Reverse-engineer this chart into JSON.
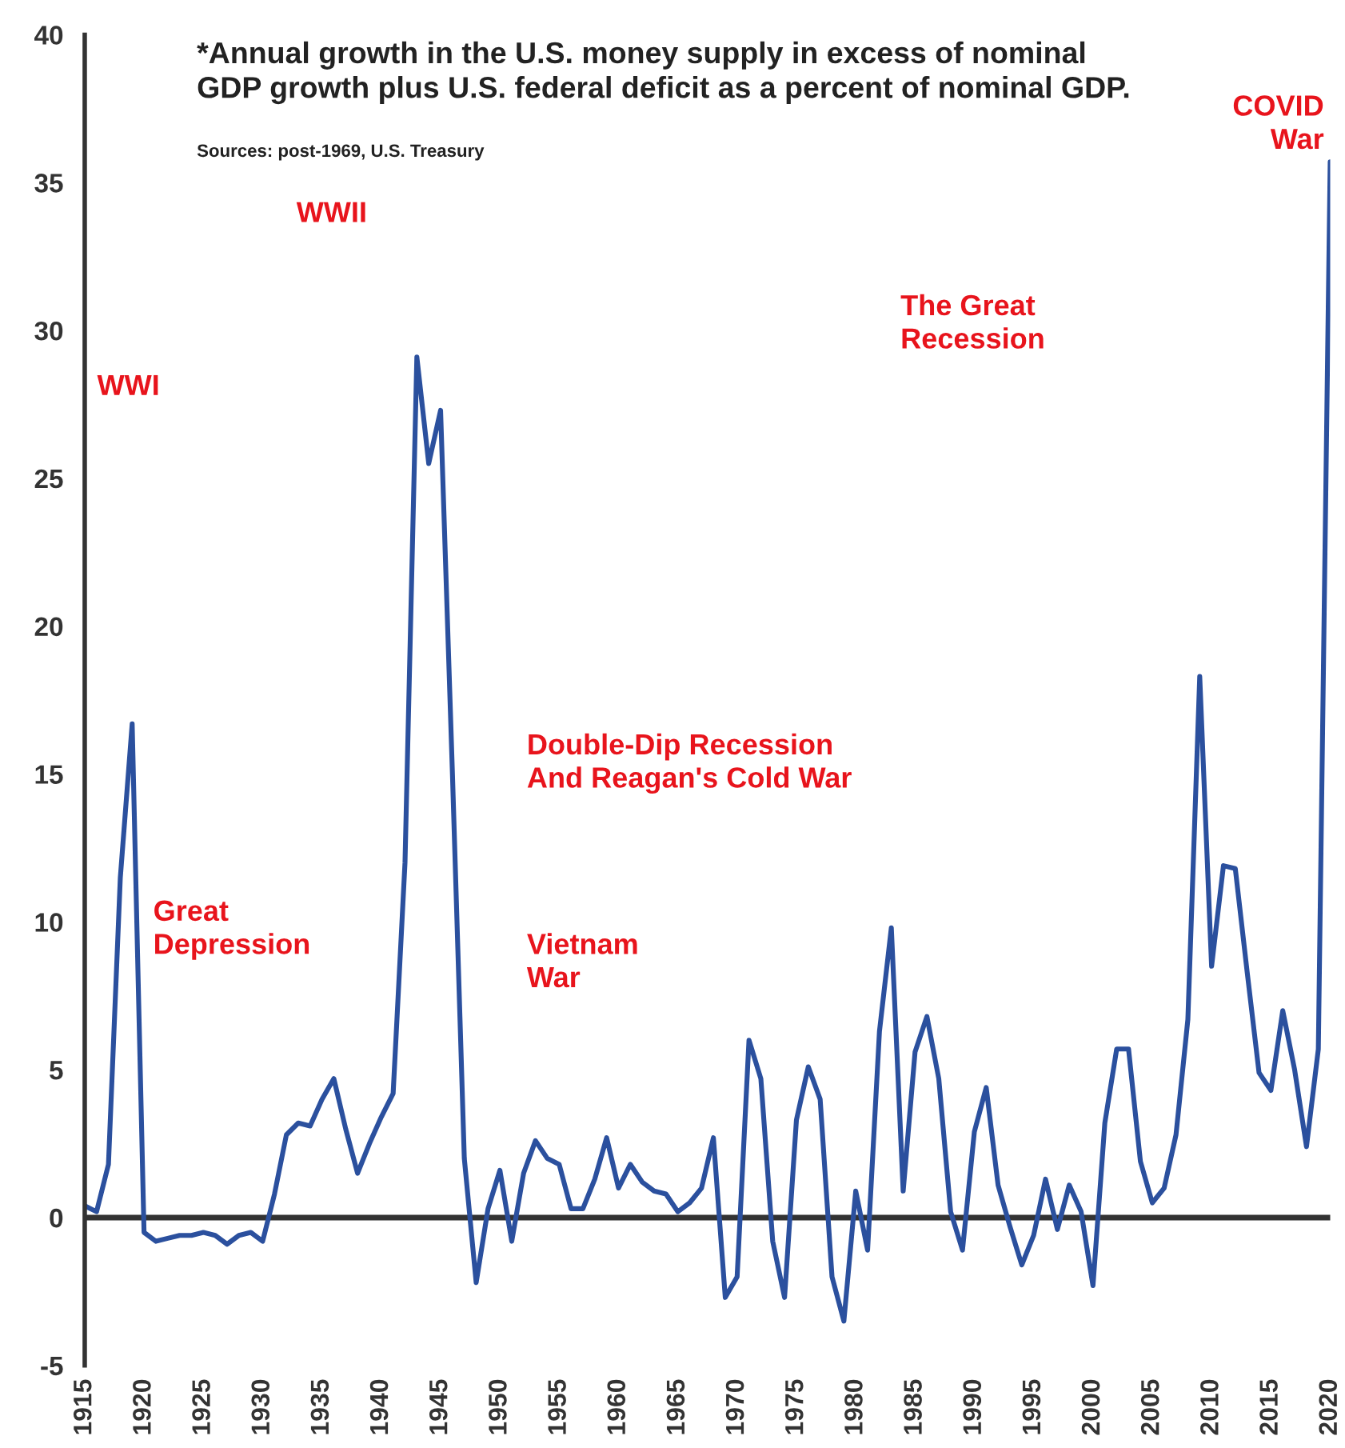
{
  "chart_data": {
    "type": "line",
    "title": "*Annual growth in the U.S. money supply in excess of nominal\nGDP growth plus U.S. federal deficit as a percent of nominal GDP.",
    "annotations": [
      "Sources: post-1969, U.S. Treasury",
      "WWI",
      "Great\nDepression",
      "WWII",
      "Vietnam\nWar",
      "Double-Dip Recession\nAnd Reagan's Cold War",
      "The Great\nRecession",
      "COVID\nWar"
    ],
    "x": [
      1915,
      1916,
      1917,
      1918,
      1919,
      1920,
      1921,
      1922,
      1923,
      1924,
      1925,
      1926,
      1927,
      1928,
      1929,
      1930,
      1931,
      1932,
      1933,
      1934,
      1935,
      1936,
      1937,
      1938,
      1939,
      1940,
      1941,
      1942,
      1943,
      1944,
      1945,
      1946,
      1947,
      1948,
      1949,
      1950,
      1951,
      1952,
      1953,
      1954,
      1955,
      1956,
      1957,
      1958,
      1959,
      1960,
      1961,
      1962,
      1963,
      1964,
      1965,
      1966,
      1967,
      1968,
      1969,
      1970,
      1971,
      1972,
      1973,
      1974,
      1975,
      1976,
      1977,
      1978,
      1979,
      1980,
      1981,
      1982,
      1983,
      1984,
      1985,
      1986,
      1987,
      1988,
      1989,
      1990,
      1991,
      1992,
      1993,
      1994,
      1995,
      1996,
      1997,
      1998,
      1999,
      2000,
      2001,
      2002,
      2003,
      2004,
      2005,
      2006,
      2007,
      2008,
      2009,
      2010,
      2011,
      2012,
      2013,
      2014,
      2015,
      2016,
      2017,
      2018,
      2019,
      2020
    ],
    "series": [
      {
        "color": "#2b509e",
        "values": [
          0.4,
          0.2,
          1.8,
          11.5,
          16.7,
          -0.5,
          -0.8,
          -0.7,
          -0.6,
          -0.6,
          -0.5,
          -0.6,
          -0.9,
          -0.6,
          -0.5,
          -0.8,
          0.8,
          2.8,
          3.2,
          3.1,
          4.0,
          4.7,
          3.0,
          1.5,
          2.5,
          3.4,
          4.2,
          12.0,
          29.1,
          25.5,
          27.3,
          15.0,
          2.0,
          -2.2,
          0.3,
          1.6,
          -0.8,
          1.5,
          2.6,
          2.0,
          1.8,
          0.3,
          0.3,
          1.3,
          2.7,
          1.0,
          1.8,
          1.2,
          0.9,
          0.8,
          0.2,
          0.5,
          1.0,
          2.7,
          -2.7,
          -2.0,
          6.0,
          4.7,
          -0.8,
          -2.7,
          3.3,
          5.1,
          4.0,
          -2.0,
          -3.5,
          0.9,
          -1.1,
          6.3,
          9.8,
          0.9,
          5.6,
          6.8,
          4.7,
          0.2,
          -1.1,
          2.9,
          4.4,
          1.1,
          -0.3,
          -1.6,
          -0.6,
          1.3,
          -0.4,
          1.1,
          0.2,
          -2.3,
          3.2,
          5.7,
          5.7,
          1.9,
          0.5,
          1.0,
          2.8,
          6.7,
          18.3,
          8.5,
          11.9,
          11.8,
          8.3,
          4.9,
          4.3,
          7.0,
          5.0,
          2.4,
          5.7,
          35.7
        ]
      }
    ],
    "xlim": [
      1915,
      2020
    ],
    "xticks": [
      1915,
      1920,
      1925,
      1930,
      1935,
      1940,
      1945,
      1950,
      1955,
      1960,
      1965,
      1970,
      1975,
      1980,
      1985,
      1990,
      1995,
      2000,
      2005,
      2010,
      2015,
      2020
    ],
    "ylim": [
      -5,
      40
    ],
    "yticks": [
      -5,
      0,
      5,
      10,
      15,
      20,
      25,
      30,
      35,
      40
    ],
    "ref_lines": [
      {
        "axis": "y",
        "value": 0,
        "color": "#333333"
      }
    ],
    "grid": false,
    "legend": false,
    "marker": "none",
    "line_style": "solid"
  }
}
